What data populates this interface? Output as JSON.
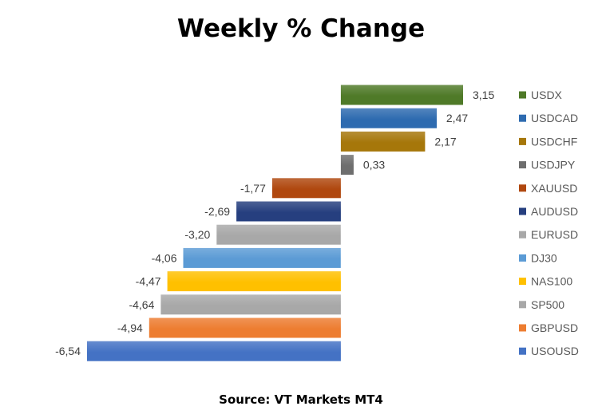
{
  "chart_data": {
    "type": "bar",
    "orientation": "horizontal",
    "title": "Weekly % Change",
    "source": "Source: VT Markets MT4",
    "xlabel": "",
    "ylabel": "",
    "legend_position": "right",
    "grid": false,
    "categories": [
      "USDX",
      "USDCAD",
      "USDCHF",
      "USDJPY",
      "XAUUSD",
      "AUDUSD",
      "EURUSD",
      "DJ30",
      "NAS100",
      "SP500",
      "GBPUSD",
      "USOUSD"
    ],
    "values": [
      3.15,
      2.47,
      2.17,
      0.33,
      -1.77,
      -2.69,
      -3.2,
      -4.06,
      -4.47,
      -4.64,
      -4.94,
      -6.54
    ],
    "value_labels": [
      "3,15",
      "2,47",
      "2,17",
      "0,33",
      "-1,77",
      "-2,69",
      "-3,20",
      "-4,06",
      "-4,47",
      "-4,64",
      "-4,94",
      "-6,54"
    ],
    "colors": [
      "#4f7a28",
      "#2e6bb0",
      "#a6770a",
      "#6e6e6e",
      "#b0480f",
      "#263f7f",
      "#a8a8a8",
      "#5b9bd5",
      "#ffc000",
      "#a8a8a8",
      "#ed7d31",
      "#4472c4"
    ],
    "xlim": [
      -6.54,
      3.15
    ]
  }
}
